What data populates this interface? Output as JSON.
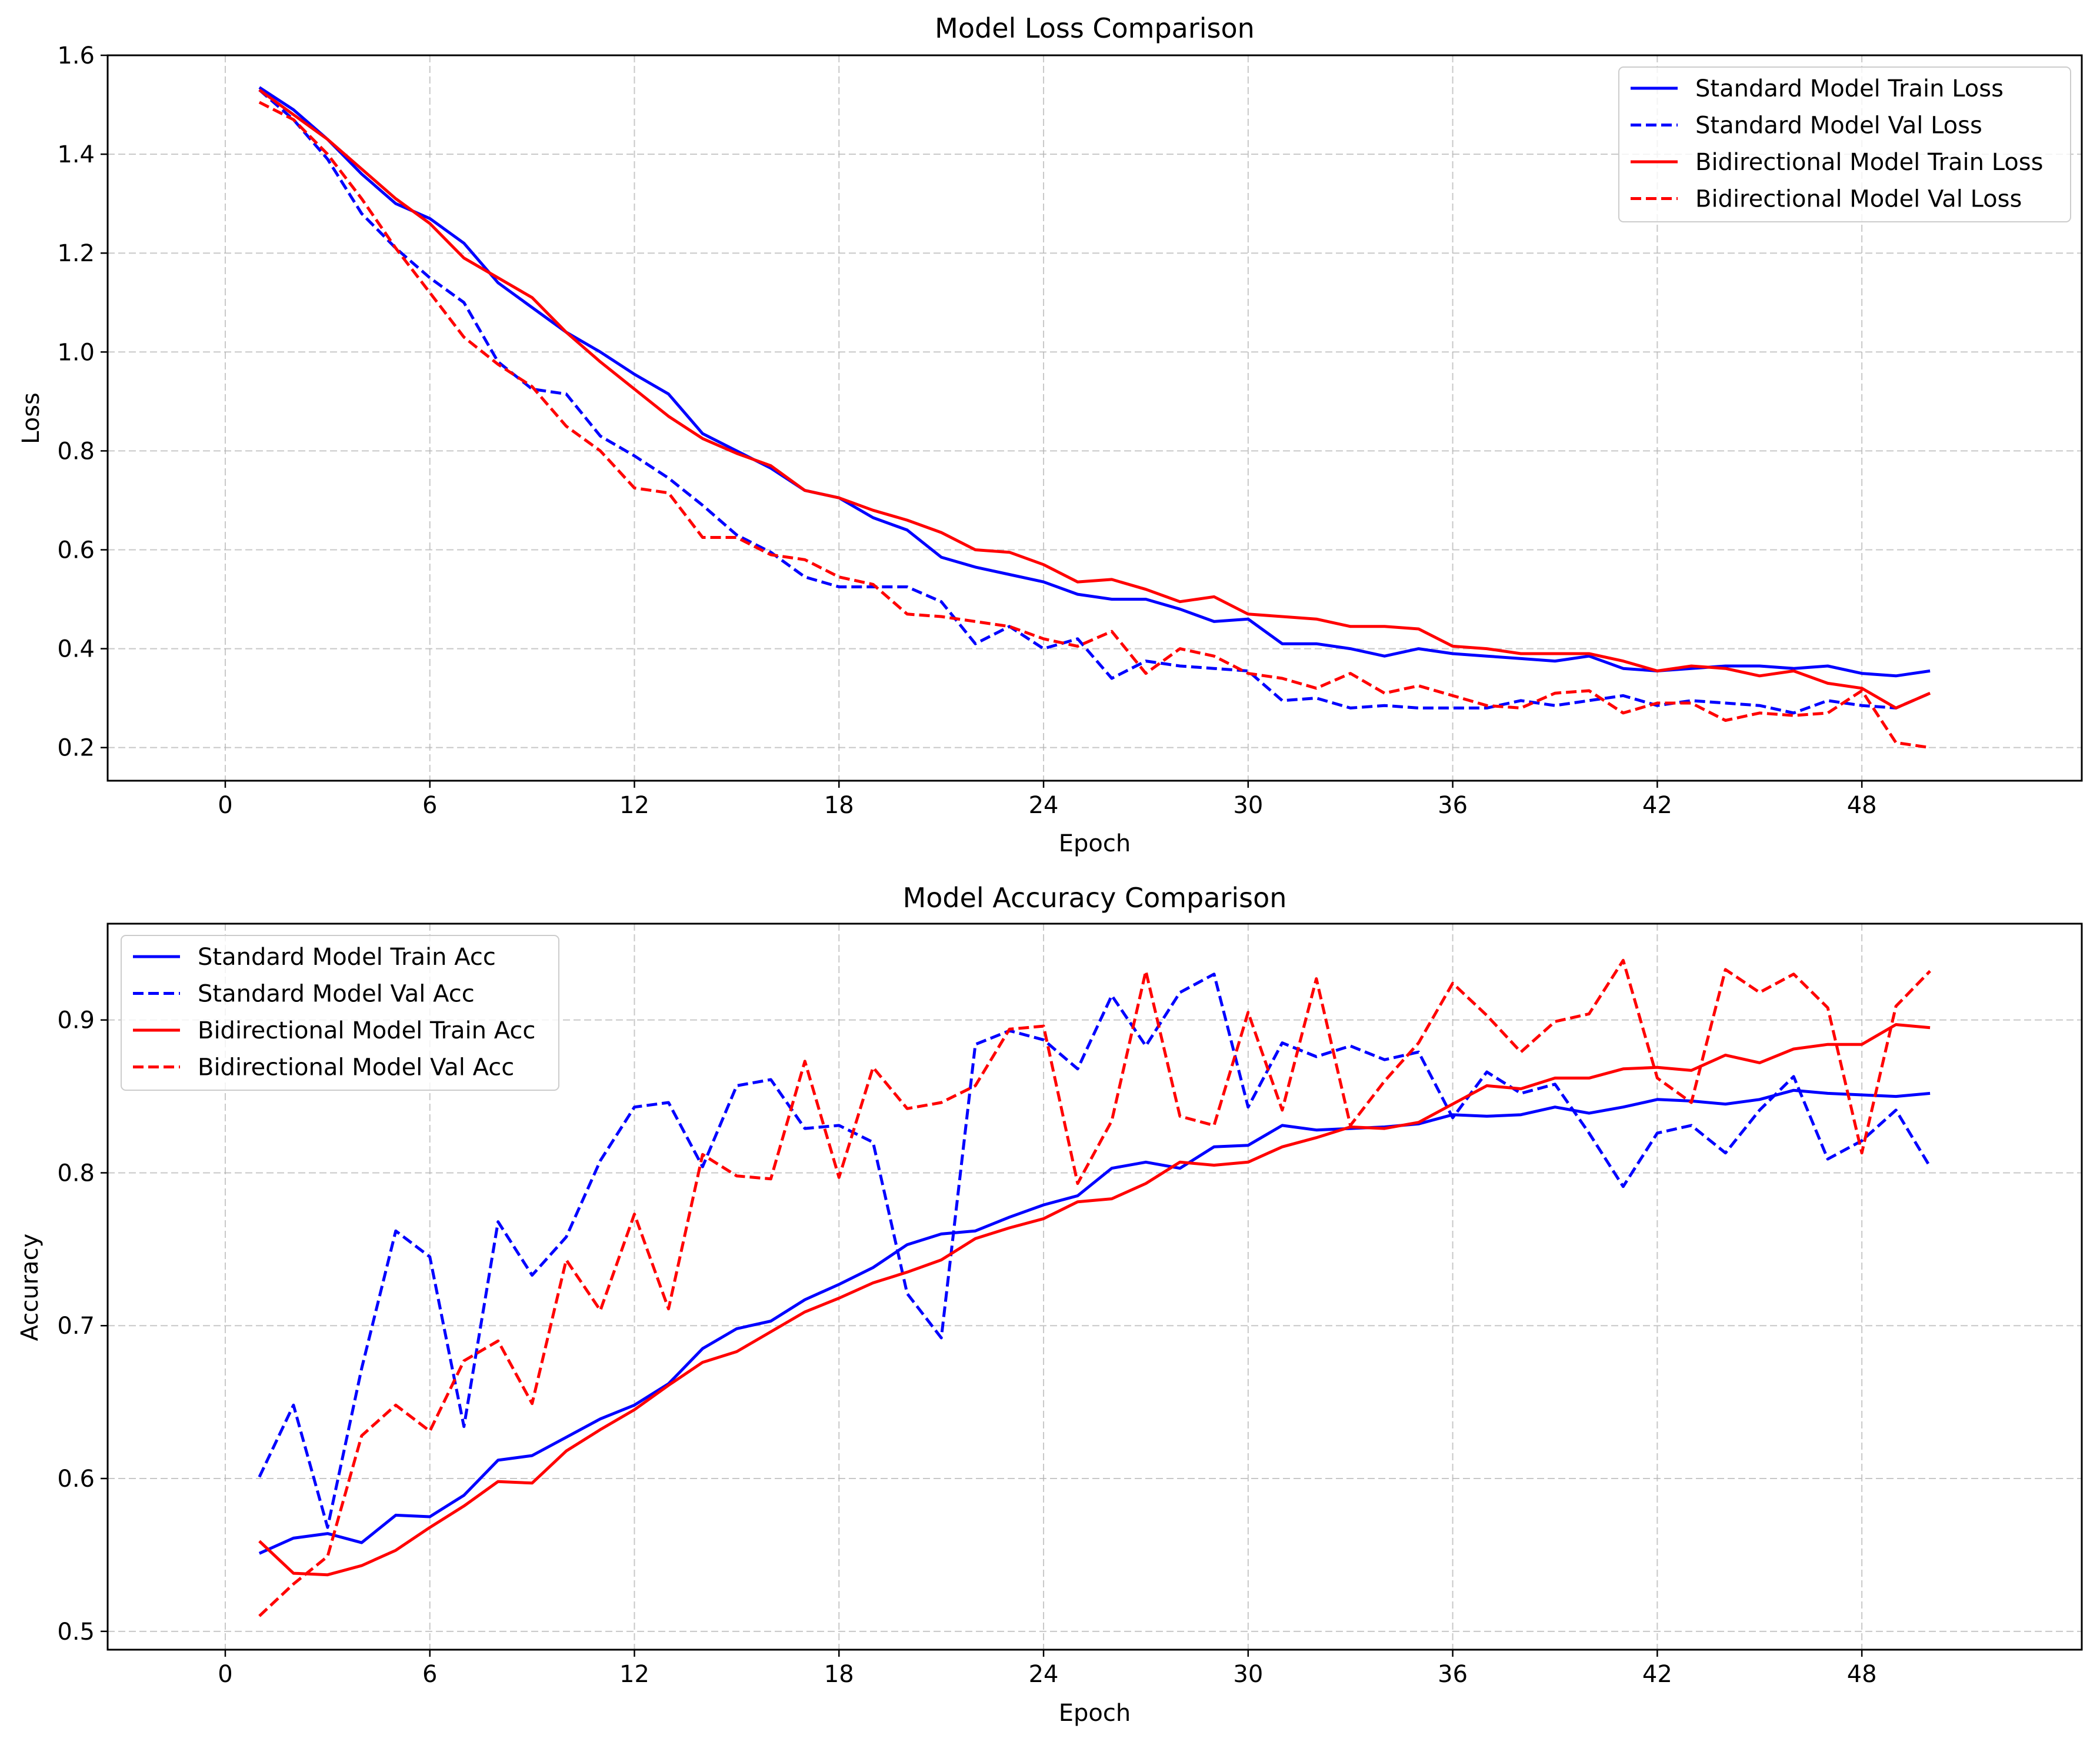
{
  "chart_data": [
    {
      "type": "line",
      "title": "Model Loss Comparison",
      "xlabel": "Epoch",
      "ylabel": "Loss",
      "xlim": [
        -3.45,
        54.45
      ],
      "ylim": [
        0.133,
        1.6
      ],
      "xticks": [
        0,
        6,
        12,
        18,
        24,
        30,
        36,
        42,
        48
      ],
      "yticks": [
        0.2,
        0.4,
        0.6,
        0.8,
        1.0,
        1.2,
        1.4,
        1.6
      ],
      "ytick_labels": [
        "0.2",
        "0.4",
        "0.6",
        "0.8",
        "1.0",
        "1.2",
        "1.4",
        "1.6"
      ],
      "grid": true,
      "legend_position": "top-right",
      "x": [
        1,
        2,
        3,
        4,
        5,
        6,
        7,
        8,
        9,
        10,
        11,
        12,
        13,
        14,
        15,
        16,
        17,
        18,
        19,
        20,
        21,
        22,
        23,
        24,
        25,
        26,
        27,
        28,
        29,
        30,
        31,
        32,
        33,
        34,
        35,
        36,
        37,
        38,
        39,
        40,
        41,
        42,
        43,
        44,
        45,
        46,
        47,
        48,
        49,
        50
      ],
      "series": [
        {
          "name": "Standard Model Train Loss",
          "color": "#0000ff",
          "style": "solid",
          "values": [
            1.535,
            1.49,
            1.43,
            1.36,
            1.3,
            1.27,
            1.22,
            1.14,
            1.09,
            1.04,
            1.0,
            0.955,
            0.915,
            0.835,
            0.8,
            0.765,
            0.72,
            0.705,
            0.665,
            0.64,
            0.585,
            0.565,
            0.55,
            0.535,
            0.51,
            0.5,
            0.5,
            0.48,
            0.455,
            0.46,
            0.41,
            0.41,
            0.4,
            0.385,
            0.4,
            0.39,
            0.385,
            0.38,
            0.375,
            0.385,
            0.36,
            0.355,
            0.36,
            0.365,
            0.365,
            0.36,
            0.365,
            0.35,
            0.345,
            0.355
          ]
        },
        {
          "name": "Standard Model Val Loss",
          "color": "#0000ff",
          "style": "dashed",
          "values": [
            1.53,
            1.47,
            1.39,
            1.28,
            1.21,
            1.15,
            1.1,
            0.98,
            0.925,
            0.915,
            0.83,
            0.79,
            0.745,
            0.69,
            0.63,
            0.595,
            0.545,
            0.525,
            0.525,
            0.525,
            0.495,
            0.41,
            0.445,
            0.4,
            0.42,
            0.34,
            0.375,
            0.365,
            0.36,
            0.355,
            0.295,
            0.3,
            0.28,
            0.285,
            0.28,
            0.28,
            0.28,
            0.295,
            0.285,
            0.295,
            0.305,
            0.285,
            0.295,
            0.29,
            0.285,
            0.27,
            0.295,
            0.285,
            0.28,
            0.31
          ]
        },
        {
          "name": "Bidirectional Model Train Loss",
          "color": "#ff0000",
          "style": "solid",
          "values": [
            1.53,
            1.48,
            1.43,
            1.37,
            1.31,
            1.26,
            1.19,
            1.15,
            1.11,
            1.04,
            0.98,
            0.925,
            0.87,
            0.825,
            0.795,
            0.77,
            0.72,
            0.705,
            0.68,
            0.66,
            0.635,
            0.6,
            0.595,
            0.57,
            0.535,
            0.54,
            0.52,
            0.495,
            0.505,
            0.47,
            0.465,
            0.46,
            0.445,
            0.445,
            0.44,
            0.405,
            0.4,
            0.39,
            0.39,
            0.39,
            0.375,
            0.355,
            0.365,
            0.36,
            0.345,
            0.355,
            0.33,
            0.32,
            0.28,
            0.31
          ]
        },
        {
          "name": "Bidirectional Model Val Loss",
          "color": "#ff0000",
          "style": "dashed",
          "values": [
            1.505,
            1.47,
            1.4,
            1.31,
            1.21,
            1.12,
            1.03,
            0.975,
            0.93,
            0.85,
            0.8,
            0.725,
            0.715,
            0.625,
            0.625,
            0.59,
            0.58,
            0.545,
            0.53,
            0.47,
            0.465,
            0.455,
            0.445,
            0.42,
            0.405,
            0.435,
            0.35,
            0.4,
            0.385,
            0.35,
            0.34,
            0.32,
            0.35,
            0.31,
            0.325,
            0.305,
            0.285,
            0.28,
            0.31,
            0.315,
            0.27,
            0.29,
            0.29,
            0.255,
            0.27,
            0.265,
            0.27,
            0.315,
            0.21,
            0.2
          ]
        }
      ]
    },
    {
      "type": "line",
      "title": "Model Accuracy Comparison",
      "xlabel": "Epoch",
      "ylabel": "Accuracy",
      "xlim": [
        -3.45,
        54.45
      ],
      "ylim": [
        0.488,
        0.963
      ],
      "xticks": [
        0,
        6,
        12,
        18,
        24,
        30,
        36,
        42,
        48
      ],
      "yticks": [
        0.5,
        0.6,
        0.7,
        0.8,
        0.9
      ],
      "ytick_labels": [
        "0.5",
        "0.6",
        "0.7",
        "0.8",
        "0.9"
      ],
      "grid": true,
      "legend_position": "top-left",
      "x": [
        1,
        2,
        3,
        4,
        5,
        6,
        7,
        8,
        9,
        10,
        11,
        12,
        13,
        14,
        15,
        16,
        17,
        18,
        19,
        20,
        21,
        22,
        23,
        24,
        25,
        26,
        27,
        28,
        29,
        30,
        31,
        32,
        33,
        34,
        35,
        36,
        37,
        38,
        39,
        40,
        41,
        42,
        43,
        44,
        45,
        46,
        47,
        48,
        49,
        50
      ],
      "series": [
        {
          "name": "Standard Model Train Acc",
          "color": "#0000ff",
          "style": "solid",
          "values": [
            0.551,
            0.561,
            0.564,
            0.558,
            0.576,
            0.575,
            0.589,
            0.612,
            0.615,
            0.627,
            0.639,
            0.648,
            0.662,
            0.685,
            0.698,
            0.703,
            0.717,
            0.727,
            0.738,
            0.753,
            0.76,
            0.762,
            0.771,
            0.779,
            0.785,
            0.803,
            0.807,
            0.803,
            0.817,
            0.818,
            0.831,
            0.828,
            0.829,
            0.83,
            0.832,
            0.838,
            0.837,
            0.838,
            0.843,
            0.839,
            0.843,
            0.848,
            0.847,
            0.845,
            0.848,
            0.854,
            0.852,
            0.851,
            0.85,
            0.852
          ]
        },
        {
          "name": "Standard Model Val Acc",
          "color": "#0000ff",
          "style": "dashed",
          "values": [
            0.601,
            0.648,
            0.568,
            0.672,
            0.762,
            0.745,
            0.634,
            0.768,
            0.733,
            0.758,
            0.808,
            0.843,
            0.846,
            0.804,
            0.857,
            0.861,
            0.829,
            0.831,
            0.82,
            0.721,
            0.692,
            0.884,
            0.893,
            0.887,
            0.868,
            0.916,
            0.883,
            0.918,
            0.93,
            0.843,
            0.885,
            0.876,
            0.883,
            0.874,
            0.879,
            0.836,
            0.866,
            0.852,
            0.858,
            0.826,
            0.791,
            0.826,
            0.831,
            0.813,
            0.841,
            0.863,
            0.809,
            0.821,
            0.841,
            0.804
          ]
        },
        {
          "name": "Bidirectional Model Train Acc",
          "color": "#ff0000",
          "style": "solid",
          "values": [
            0.559,
            0.538,
            0.537,
            0.543,
            0.553,
            0.568,
            0.582,
            0.598,
            0.597,
            0.618,
            0.632,
            0.645,
            0.661,
            0.676,
            0.683,
            0.696,
            0.709,
            0.718,
            0.728,
            0.735,
            0.743,
            0.757,
            0.764,
            0.77,
            0.781,
            0.783,
            0.793,
            0.807,
            0.805,
            0.807,
            0.817,
            0.823,
            0.83,
            0.829,
            0.833,
            0.845,
            0.857,
            0.855,
            0.862,
            0.862,
            0.868,
            0.869,
            0.867,
            0.877,
            0.872,
            0.881,
            0.884,
            0.884,
            0.897,
            0.895
          ]
        },
        {
          "name": "Bidirectional Model Val Acc",
          "color": "#ff0000",
          "style": "dashed",
          "values": [
            0.51,
            0.531,
            0.549,
            0.628,
            0.648,
            0.631,
            0.677,
            0.69,
            0.649,
            0.743,
            0.71,
            0.773,
            0.711,
            0.812,
            0.798,
            0.796,
            0.873,
            0.797,
            0.869,
            0.842,
            0.846,
            0.857,
            0.894,
            0.896,
            0.793,
            0.834,
            0.932,
            0.837,
            0.831,
            0.905,
            0.841,
            0.927,
            0.831,
            0.86,
            0.885,
            0.924,
            0.903,
            0.879,
            0.899,
            0.904,
            0.939,
            0.862,
            0.846,
            0.933,
            0.918,
            0.93,
            0.908,
            0.813,
            0.909,
            0.932
          ]
        }
      ]
    }
  ]
}
